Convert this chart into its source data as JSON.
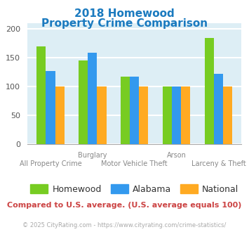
{
  "title_line1": "2018 Homewood",
  "title_line2": "Property Crime Comparison",
  "title_color": "#1a7abf",
  "categories": [
    "All Property Crime",
    "Burglary",
    "Motor Vehicle Theft",
    "Arson",
    "Larceny & Theft"
  ],
  "category_labels_top": [
    "",
    "Burglary",
    "",
    "Arson",
    ""
  ],
  "category_labels_bottom": [
    "All Property Crime",
    "",
    "Motor Vehicle Theft",
    "",
    "Larceny & Theft"
  ],
  "homewood": [
    170,
    145,
    117,
    100,
    184
  ],
  "alabama": [
    127,
    158,
    117,
    100,
    122
  ],
  "national": [
    100,
    100,
    100,
    100,
    100
  ],
  "bar_colors": {
    "homewood": "#77cc22",
    "alabama": "#3399ee",
    "national": "#ffaa22"
  },
  "ylim": [
    0,
    210
  ],
  "yticks": [
    0,
    50,
    100,
    150,
    200
  ],
  "background_color": "#ddeef5",
  "grid_color": "#ffffff",
  "note": "Compared to U.S. average. (U.S. average equals 100)",
  "note_color": "#cc4444",
  "footer": "© 2025 CityRating.com - https://www.cityrating.com/crime-statistics/",
  "footer_color": "#aaaaaa",
  "legend_labels": [
    "Homewood",
    "Alabama",
    "National"
  ]
}
